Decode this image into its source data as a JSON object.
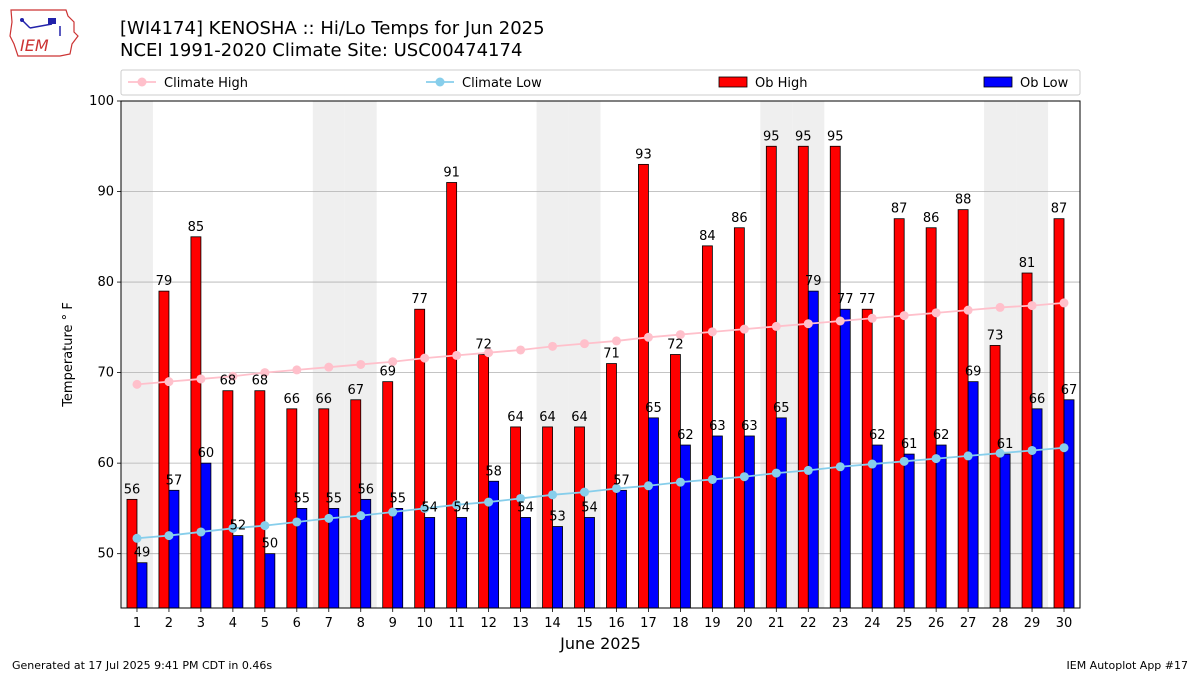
{
  "header": {
    "title_line1": "[WI4174] KENOSHA :: Hi/Lo Temps for Jun 2025",
    "title_line2": "NCEI 1991-2020 Climate Site: USC00474174",
    "logo_text": "IEM"
  },
  "footer": {
    "generated": "Generated at 17 Jul 2025 9:41 PM CDT in 0.46s",
    "app": "IEM Autoplot App #17"
  },
  "colors": {
    "ob_high": "#ff0000",
    "ob_low": "#0000ff",
    "climate_high": "#ffc0cb",
    "climate_low": "#87ceeb",
    "weekend_band": "#efefef",
    "grid": "#b0b0b0"
  },
  "chart_data": {
    "type": "bar",
    "xlabel": "June 2025",
    "ylabel": "Temperature ° F",
    "ylim": [
      44,
      100
    ],
    "yticks": [
      50,
      60,
      70,
      80,
      90,
      100
    ],
    "grid": true,
    "legend_position": "top",
    "categories": [
      "1",
      "2",
      "3",
      "4",
      "5",
      "6",
      "7",
      "8",
      "9",
      "10",
      "11",
      "12",
      "13",
      "14",
      "15",
      "16",
      "17",
      "18",
      "19",
      "20",
      "21",
      "22",
      "23",
      "24",
      "25",
      "26",
      "27",
      "28",
      "29",
      "30"
    ],
    "shaded_days": [
      1,
      7,
      8,
      14,
      15,
      21,
      22,
      28,
      29
    ],
    "series": [
      {
        "name": "Ob High",
        "kind": "bar",
        "values": [
          56,
          79,
          85,
          68,
          68,
          66,
          66,
          67,
          69,
          77,
          91,
          72,
          64,
          64,
          64,
          71,
          93,
          72,
          84,
          86,
          95,
          95,
          95,
          77,
          87,
          86,
          88,
          73,
          81,
          87
        ]
      },
      {
        "name": "Ob Low",
        "kind": "bar",
        "values": [
          49,
          57,
          60,
          52,
          50,
          55,
          55,
          56,
          55,
          54,
          54,
          58,
          54,
          53,
          54,
          57,
          65,
          62,
          63,
          63,
          65,
          79,
          77,
          62,
          61,
          62,
          69,
          61,
          66,
          67
        ]
      },
      {
        "name": "Climate High",
        "kind": "line",
        "values": [
          68.7,
          69.0,
          69.3,
          69.6,
          70.0,
          70.3,
          70.6,
          70.9,
          71.2,
          71.6,
          71.9,
          72.2,
          72.5,
          72.9,
          73.2,
          73.5,
          73.9,
          74.2,
          74.5,
          74.8,
          75.1,
          75.4,
          75.7,
          76.0,
          76.3,
          76.6,
          76.9,
          77.2,
          77.4,
          77.7
        ]
      },
      {
        "name": "Climate Low",
        "kind": "line",
        "values": [
          51.7,
          52.0,
          52.4,
          52.8,
          53.1,
          53.5,
          53.9,
          54.2,
          54.6,
          55.0,
          55.4,
          55.7,
          56.1,
          56.5,
          56.8,
          57.2,
          57.5,
          57.9,
          58.2,
          58.5,
          58.9,
          59.2,
          59.6,
          59.9,
          60.2,
          60.5,
          60.8,
          61.1,
          61.4,
          61.7
        ]
      }
    ],
    "legend": [
      "Climate High",
      "Climate Low",
      "Ob High",
      "Ob Low"
    ]
  }
}
